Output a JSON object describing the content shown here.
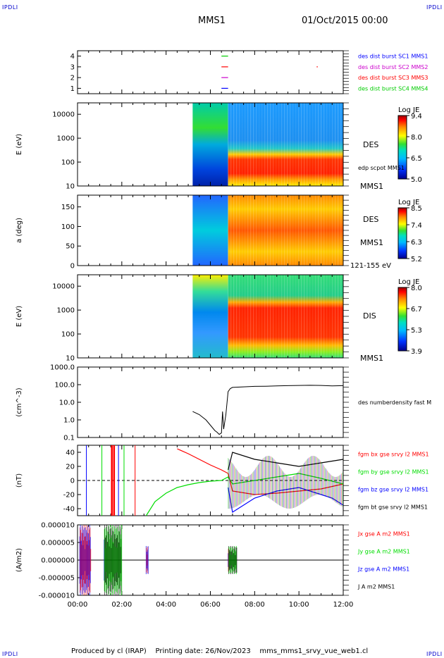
{
  "corner_label": "IPDLI",
  "header": {
    "spacecraft": "MMS1",
    "date_time": "01/Oct/2015 00:00"
  },
  "footer": {
    "produced_by": "Produced by cl (IRAP)",
    "printing_date": "Printing date: 26/Nov/2023",
    "file": "mms_mms1_srvy_vue_web1.cl"
  },
  "time_axis": {
    "ticks": [
      "00:00",
      "02:00",
      "04:00",
      "06:00",
      "08:00",
      "10:00",
      "12:00"
    ],
    "range_hours": [
      0,
      12
    ]
  },
  "colors": {
    "mms1": "#0000ff",
    "mms2": "#cc00cc",
    "mms3": "#ff0000",
    "mms4": "#00cc00",
    "bx": "#ff0000",
    "by": "#00dd00",
    "bz": "#0000ff",
    "bt": "#000000"
  },
  "chart_data": [
    {
      "type": "scatter",
      "name": "availability",
      "yticks": [
        "1",
        "2",
        "3",
        "4"
      ],
      "ylim": [
        0.5,
        4.5
      ],
      "legend": [
        {
          "label": "des dist burst SC1 MMS1",
          "color": "#0000ff"
        },
        {
          "label": "des dist burst SC2 MMS2",
          "color": "#cc00cc"
        },
        {
          "label": "des dist burst SC3 MMS3",
          "color": "#ff0000"
        },
        {
          "label": "des dist burst SC4 MMS4",
          "color": "#00cc00"
        }
      ],
      "segments": [
        {
          "sc": 4,
          "t": [
            6.5,
            6.8
          ]
        },
        {
          "sc": 3,
          "t": [
            6.5,
            6.8
          ]
        },
        {
          "sc": 2,
          "t": [
            6.5,
            6.8
          ]
        },
        {
          "sc": 1,
          "t": [
            6.5,
            6.8
          ]
        },
        {
          "sc": 3,
          "t": [
            10.8,
            10.85
          ]
        }
      ]
    },
    {
      "type": "heatmap",
      "name": "des-energy",
      "ylabel": "E (eV)",
      "yscale": "log",
      "ylim": [
        10,
        30000
      ],
      "yticks": [
        "10",
        "100",
        "1000",
        "10000"
      ],
      "instrument": "DES",
      "side_label": "edp scpot MMS1",
      "spacecraft": "MMS1",
      "colorbar": {
        "title": "Log JE",
        "ticks": [
          "9.4",
          "8.0",
          "6.5",
          "5.0"
        ],
        "range": [
          5.0,
          9.4
        ]
      },
      "data_start": 5.2
    },
    {
      "type": "heatmap",
      "name": "des-pitch",
      "ylabel": "a (deg)",
      "ylim": [
        0,
        180
      ],
      "yticks": [
        "0",
        "50",
        "100",
        "150"
      ],
      "instrument": "DES",
      "spacecraft": "MMS1",
      "energy_range": "121-155 eV",
      "colorbar": {
        "title": "Log JE",
        "ticks": [
          "8.5",
          "7.4",
          "6.3",
          "5.2"
        ],
        "range": [
          5.2,
          8.5
        ]
      },
      "data_start": 5.2
    },
    {
      "type": "heatmap",
      "name": "dis-energy",
      "ylabel": "E (eV)",
      "yscale": "log",
      "ylim": [
        10,
        30000
      ],
      "yticks": [
        "10",
        "100",
        "1000",
        "10000"
      ],
      "instrument": "DIS",
      "spacecraft": "MMS1",
      "colorbar": {
        "title": "Log JE",
        "ticks": [
          "8.0",
          "6.7",
          "5.3",
          "3.9"
        ],
        "range": [
          3.9,
          8.0
        ]
      },
      "data_start": 5.2
    },
    {
      "type": "line",
      "name": "density",
      "ylabel": "(cm^-3)",
      "yscale": "log",
      "ylim": [
        0.1,
        1000
      ],
      "yticks": [
        "0.1",
        "1.0",
        "10.0",
        "100.0",
        "1000.0"
      ],
      "legend": [
        {
          "label": "des numberdensity fast M",
          "color": "#000000"
        }
      ],
      "x": [
        5.2,
        5.5,
        5.8,
        6.0,
        6.2,
        6.3,
        6.4,
        6.5,
        6.55,
        6.6,
        6.7,
        6.8,
        6.9,
        7.0,
        7.5,
        8,
        8.5,
        9,
        9.5,
        10,
        10.5,
        11,
        11.5,
        12
      ],
      "y": [
        3,
        2,
        1,
        0.5,
        0.25,
        0.2,
        0.15,
        0.18,
        3,
        0.3,
        2,
        40,
        60,
        70,
        75,
        80,
        82,
        85,
        88,
        90,
        92,
        90,
        85,
        88
      ]
    },
    {
      "type": "line",
      "name": "magnetic-field",
      "ylabel": "(nT)",
      "ylim": [
        -50,
        50
      ],
      "yticks": [
        "-40",
        "-20",
        "0",
        "20",
        "40"
      ],
      "legend": [
        {
          "label": "fgm bx gse srvy l2 MMS1",
          "color": "#ff0000"
        },
        {
          "label": "fgm by gse srvy l2 MMS1",
          "color": "#00dd00"
        },
        {
          "label": "fgm bz gse srvy l2 MMS1",
          "color": "#0000ff"
        },
        {
          "label": "fgm bt gse srvy l2 MMS1",
          "color": "#000000"
        }
      ],
      "series": [
        {
          "color": "#ff0000",
          "x": [
            4.5,
            5.0,
            5.5,
            6.0,
            6.5,
            6.8,
            7.0,
            8,
            9,
            10,
            11,
            12
          ],
          "y": [
            45,
            38,
            30,
            22,
            15,
            10,
            -15,
            -20,
            -18,
            -15,
            -12,
            -5
          ]
        },
        {
          "color": "#00dd00",
          "x": [
            3.1,
            3.5,
            4.0,
            4.5,
            5.0,
            5.5,
            6.0,
            6.5,
            6.8,
            7.0,
            8,
            9,
            10,
            11,
            12
          ],
          "y": [
            -50,
            -30,
            -18,
            -10,
            -6,
            -3,
            -1,
            0,
            5,
            -5,
            0,
            5,
            10,
            3,
            -5
          ]
        },
        {
          "color": "#0000ff",
          "x": [
            6.8,
            7.0,
            8,
            9,
            10,
            11,
            11.5,
            12
          ],
          "y": [
            -10,
            -45,
            -25,
            -15,
            -10,
            -20,
            -25,
            -35
          ]
        },
        {
          "color": "#000000",
          "x": [
            6.8,
            7.0,
            8,
            9,
            10,
            11,
            12
          ],
          "y": [
            15,
            40,
            30,
            25,
            20,
            25,
            30
          ]
        }
      ]
    },
    {
      "type": "line",
      "name": "current-density",
      "ylabel": "(A/m2)",
      "ylim": [
        -1e-05,
        1e-05
      ],
      "yticks": [
        "-0.000010",
        "-0.000005",
        "0.000000",
        "0.000005",
        "0.000010"
      ],
      "legend": [
        {
          "label": "Jx gse A m2 MMS1",
          "color": "#ff0000"
        },
        {
          "label": "Jy gse A m2 MMS1",
          "color": "#00dd00"
        },
        {
          "label": "Jz gse A m2 MMS1",
          "color": "#0000ff"
        },
        {
          "label": "J A m2 MMS1",
          "color": "#000000"
        }
      ]
    }
  ]
}
